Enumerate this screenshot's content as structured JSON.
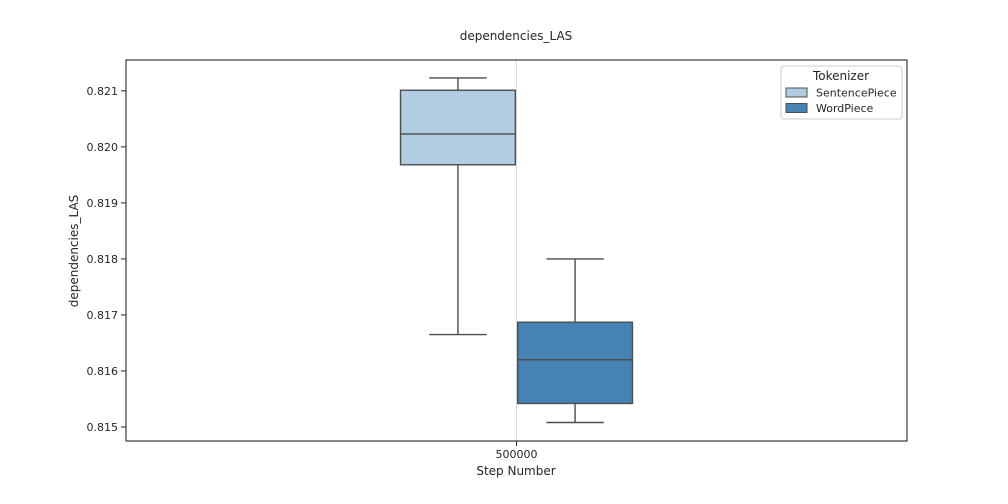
{
  "chart_data": {
    "type": "box",
    "title": "dependencies_LAS",
    "xlabel": "Step Number",
    "ylabel": "dependencies_LAS",
    "categories": [
      "500000"
    ],
    "ylim": [
      0.81475,
      0.82155
    ],
    "yticks": [
      "0.815",
      "0.816",
      "0.817",
      "0.818",
      "0.819",
      "0.820",
      "0.821"
    ],
    "grid": "vertical line at category",
    "legend": {
      "title": "Tokenizer",
      "placement": "top-right"
    },
    "series": [
      {
        "name": "SentencePiece",
        "color": "#b0cde1",
        "boxes": [
          {
            "category": "500000",
            "whisker_low": 0.81665,
            "q1": 0.81968,
            "median": 0.82023,
            "q3": 0.82101,
            "whisker_high": 0.82123
          }
        ]
      },
      {
        "name": "WordPiece",
        "color": "#4682b4",
        "boxes": [
          {
            "category": "500000",
            "whisker_low": 0.81508,
            "q1": 0.81542,
            "median": 0.8162,
            "q3": 0.81687,
            "whisker_high": 0.818
          }
        ]
      }
    ]
  }
}
